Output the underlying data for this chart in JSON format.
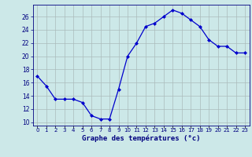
{
  "hours": [
    0,
    1,
    2,
    3,
    4,
    5,
    6,
    7,
    8,
    9,
    10,
    11,
    12,
    13,
    14,
    15,
    16,
    17,
    18,
    19,
    20,
    21,
    22,
    23
  ],
  "temperatures": [
    17.0,
    15.5,
    13.5,
    13.5,
    13.5,
    13.0,
    11.0,
    10.5,
    10.5,
    15.0,
    20.0,
    22.0,
    24.5,
    25.0,
    26.0,
    27.0,
    26.5,
    25.5,
    24.5,
    22.5,
    21.5,
    21.5,
    20.5,
    20.5
  ],
  "xlabel": "Graphe des températures (°c)",
  "ylim": [
    9.5,
    27.8
  ],
  "yticks": [
    10,
    12,
    14,
    16,
    18,
    20,
    22,
    24,
    26
  ],
  "line_color": "#0000cc",
  "marker_color": "#0000cc",
  "bg_color": "#cce8e8",
  "grid_color": "#aabbbb",
  "xlabel_color": "#000080",
  "tick_color": "#000080",
  "fig_bg": "#cce8e8"
}
